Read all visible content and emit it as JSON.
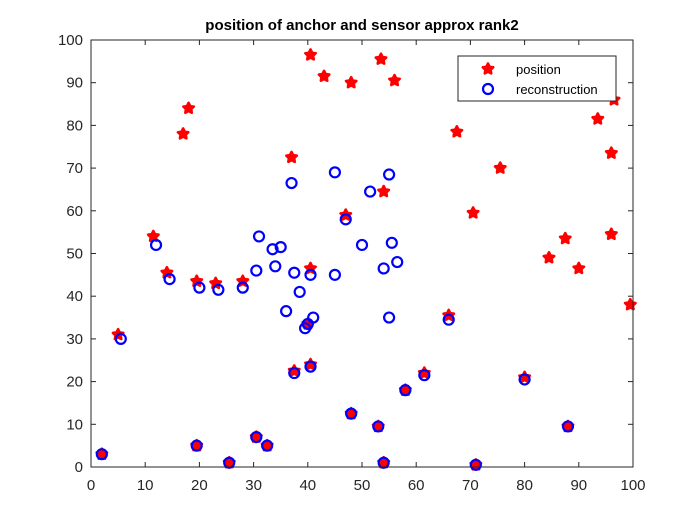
{
  "chart_data": {
    "type": "scatter",
    "title": "position of anchor and sensor approx rank2",
    "xlabel": "",
    "ylabel": "",
    "xlim": [
      0,
      100
    ],
    "ylim": [
      0,
      100
    ],
    "xticks": [
      "0",
      "10",
      "20",
      "30",
      "40",
      "50",
      "60",
      "70",
      "80",
      "90",
      "100"
    ],
    "yticks": [
      "0",
      "10",
      "20",
      "30",
      "40",
      "50",
      "60",
      "70",
      "80",
      "90",
      "100"
    ],
    "grid": false,
    "legend_position": "top-right",
    "series": [
      {
        "name": "position",
        "marker": "filled-star",
        "color": "#ff0000",
        "points": [
          [
            2,
            3
          ],
          [
            5,
            31
          ],
          [
            11.5,
            54
          ],
          [
            14,
            45.5
          ],
          [
            17,
            78
          ],
          [
            18,
            84
          ],
          [
            19.5,
            43.5
          ],
          [
            19.5,
            5
          ],
          [
            23,
            43
          ],
          [
            25.5,
            1
          ],
          [
            28,
            43.5
          ],
          [
            30.5,
            7
          ],
          [
            32.5,
            5
          ],
          [
            37,
            72.5
          ],
          [
            37.5,
            22.5
          ],
          [
            40,
            33.5
          ],
          [
            40.5,
            46.5
          ],
          [
            40.5,
            24
          ],
          [
            40.5,
            96.5
          ],
          [
            43,
            91.5
          ],
          [
            47,
            59
          ],
          [
            48,
            90
          ],
          [
            48,
            12.5
          ],
          [
            53,
            9.5
          ],
          [
            53.5,
            95.5
          ],
          [
            54,
            64.5
          ],
          [
            54,
            1
          ],
          [
            56,
            90.5
          ],
          [
            58,
            18
          ],
          [
            61.5,
            22
          ],
          [
            66,
            35.5
          ],
          [
            67.5,
            78.5
          ],
          [
            70.5,
            59.5
          ],
          [
            71,
            0.5
          ],
          [
            75.5,
            70
          ],
          [
            80,
            21
          ],
          [
            84.5,
            49
          ],
          [
            87.5,
            53.5
          ],
          [
            88,
            9.5
          ],
          [
            90,
            46.5
          ],
          [
            93.5,
            81.5
          ],
          [
            96,
            73.5
          ],
          [
            96,
            54.5
          ],
          [
            96.5,
            86
          ],
          [
            99.5,
            38
          ]
        ]
      },
      {
        "name": "reconstruction",
        "marker": "open-circle",
        "color": "#0000ff",
        "points": [
          [
            2,
            3
          ],
          [
            5.5,
            30
          ],
          [
            12,
            52
          ],
          [
            14.5,
            44
          ],
          [
            19.5,
            5
          ],
          [
            20,
            42
          ],
          [
            23.5,
            41.5
          ],
          [
            25.5,
            1
          ],
          [
            28,
            42
          ],
          [
            30.5,
            7
          ],
          [
            30.5,
            46
          ],
          [
            31,
            54
          ],
          [
            32.5,
            5
          ],
          [
            33.5,
            51
          ],
          [
            34,
            47
          ],
          [
            35,
            51.5
          ],
          [
            36,
            36.5
          ],
          [
            37,
            66.5
          ],
          [
            37.5,
            22
          ],
          [
            37.5,
            45.5
          ],
          [
            38.5,
            41
          ],
          [
            39.5,
            32.5
          ],
          [
            40,
            33.5
          ],
          [
            40.5,
            45
          ],
          [
            40.5,
            23.5
          ],
          [
            41,
            35
          ],
          [
            45,
            69
          ],
          [
            45,
            45
          ],
          [
            47,
            58
          ],
          [
            48,
            12.5
          ],
          [
            50,
            52
          ],
          [
            51.5,
            64.5
          ],
          [
            53,
            9.5
          ],
          [
            54,
            46.5
          ],
          [
            54,
            1
          ],
          [
            55,
            35
          ],
          [
            55,
            68.5
          ],
          [
            55.5,
            52.5
          ],
          [
            56.5,
            48
          ],
          [
            58,
            18
          ],
          [
            61.5,
            21.5
          ],
          [
            66,
            34.5
          ],
          [
            71,
            0.5
          ],
          [
            80,
            20.5
          ],
          [
            88,
            9.5
          ]
        ]
      }
    ]
  }
}
